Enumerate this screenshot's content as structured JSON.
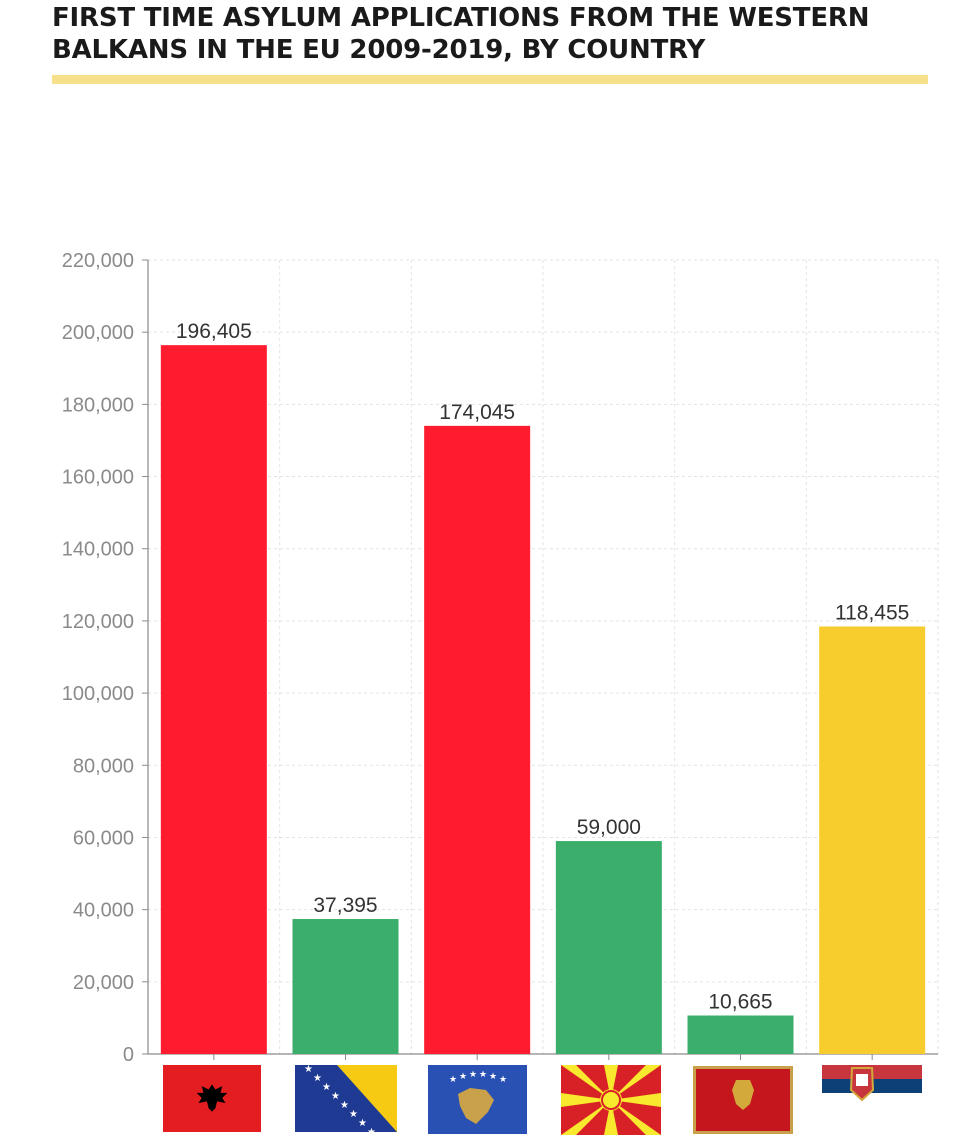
{
  "header": {
    "title_line1": "FIRST TIME ASYLUM APPLICATIONS FROM THE WESTERN",
    "title_line2": "BALKANS IN THE EU 2009-2019, BY COUNTRY",
    "rule_color": "#f7e08a"
  },
  "chart_data": {
    "type": "bar",
    "title": "FIRST TIME ASYLUM APPLICATIONS FROM THE WESTERN BALKANS IN THE EU 2009-2019, BY COUNTRY",
    "xlabel": "",
    "ylabel": "",
    "ylim": [
      0,
      220000
    ],
    "yticks": [
      0,
      20000,
      40000,
      60000,
      80000,
      100000,
      120000,
      140000,
      160000,
      180000,
      200000,
      220000
    ],
    "ytick_labels": [
      "0",
      "20,000",
      "40,000",
      "60,000",
      "80,000",
      "100,000",
      "120,000",
      "140,000",
      "160,000",
      "180,000",
      "200,000",
      "220,000"
    ],
    "grid": true,
    "categories": [
      "albania-flag",
      "bosnia-herzegovina-flag",
      "kosovo-flag",
      "north-macedonia-flag",
      "montenegro-flag",
      "serbia-flag"
    ],
    "values": [
      196405,
      37395,
      174045,
      59000,
      10665,
      118455
    ],
    "value_labels": [
      "196,405",
      "37,395",
      "174,045",
      "59,000",
      "10,665",
      "118,455"
    ],
    "colors": [
      "#ff1c2e",
      "#3aae6a",
      "#ff1c2e",
      "#3aae6a",
      "#3aae6a",
      "#f6cd2d"
    ]
  }
}
